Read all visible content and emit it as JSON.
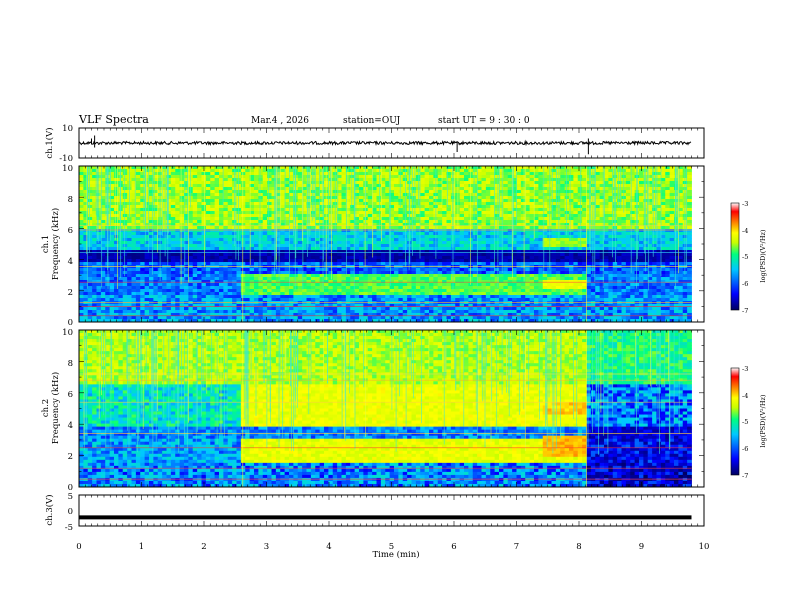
{
  "header": {
    "title": "VLF Spectra",
    "date": "Mar.4 , 2026",
    "station": "station=OUJ",
    "start": "start UT =  9 : 30 : 0"
  },
  "chart_data": {
    "type": "heatmap",
    "x_axis": {
      "label": "Time (min)",
      "range": [
        0,
        10
      ],
      "ticks": [
        "0",
        "1",
        "2",
        "3",
        "4",
        "5",
        "6",
        "7",
        "8",
        "9",
        "10"
      ]
    },
    "panels": [
      {
        "id": "ch1-waveform",
        "kind": "line",
        "ylabel": "ch.1(V)",
        "ylim": [
          -10,
          10
        ],
        "ytick_labels": [
          "10",
          "-10"
        ],
        "baseline": 0,
        "data_end_min": 9.8
      },
      {
        "id": "ch1-spectrogram",
        "kind": "spectrogram",
        "ylabel_line1": "ch.1",
        "ylabel_line2": "Frequency (kHz)",
        "ylim": [
          0,
          10
        ],
        "ytick_labels": [
          "0",
          "2",
          "4",
          "6",
          "8",
          "10"
        ],
        "data_end_min": 9.8,
        "colorbar": {
          "label": "log(PSD)(V²/Hz)",
          "range": [
            -7,
            -3
          ],
          "ticks": [
            "-3",
            "-4",
            "-5",
            "-6",
            "-7"
          ]
        }
      },
      {
        "id": "ch2-spectrogram",
        "kind": "spectrogram",
        "ylabel_line1": "ch.2",
        "ylabel_line2": "Frequency (kHz)",
        "ylim": [
          0,
          10
        ],
        "ytick_labels": [
          "0",
          "2",
          "4",
          "6",
          "8",
          "10"
        ],
        "data_end_min": 9.8,
        "colorbar": {
          "label": "log(PSD)(V²/Hz)",
          "range": [
            -7,
            -3
          ],
          "ticks": [
            "-3",
            "-4",
            "-5",
            "-6",
            "-7"
          ]
        }
      },
      {
        "id": "ch3-waveform",
        "kind": "line",
        "ylabel": "ch.3(V)",
        "ylim": [
          -5,
          5
        ],
        "ytick_labels": [
          "5",
          "0",
          "-5"
        ],
        "baseline": -2.2,
        "data_end_min": 9.8
      }
    ],
    "colormap": [
      "#000060",
      "#0000ff",
      "#00c8ff",
      "#00ff80",
      "#c8ff00",
      "#ffff00",
      "#ff8000",
      "#ff0000",
      "#ffffff"
    ]
  }
}
